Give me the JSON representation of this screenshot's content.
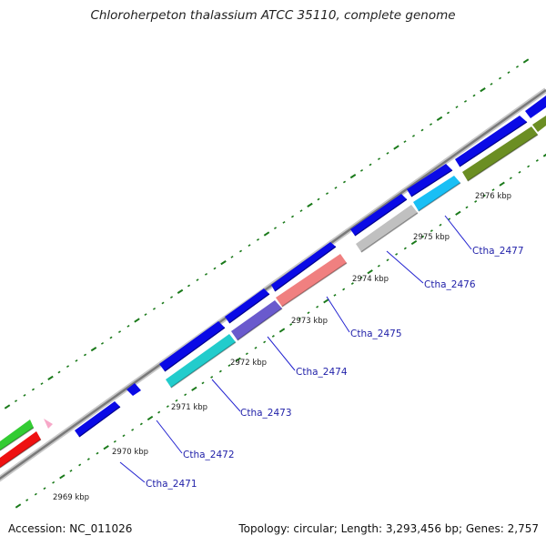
{
  "title": "Chloroherpeton thalassium ATCC 35110, complete genome",
  "footer": {
    "accession": "Accession: NC_011026",
    "summary": "Topology: circular; Length: 3,293,456 bp; Genes: 2,757"
  },
  "scale_labels": [
    "2969 kbp",
    "2970 kbp",
    "2971 kbp",
    "2972 kbp",
    "2973 kbp",
    "2974 kbp",
    "2975 kbp",
    "2976 kbp"
  ],
  "gene_labels": [
    "Ctha_2471",
    "Ctha_2472",
    "Ctha_2473",
    "Ctha_2474",
    "Ctha_2475",
    "Ctha_2476",
    "Ctha_2477"
  ],
  "colors": {
    "backbone": "#8c8c8c",
    "cds": "#0a0ae6",
    "tick": "#1a7a1a",
    "label_line": "#2020d0",
    "cyan": "#22cccc",
    "purple": "#6a5acd",
    "salmon": "#f08080",
    "gray": "#c0c0c0",
    "sky": "#19bff5",
    "olive": "#6b8e23",
    "green": "#33cc33",
    "red": "#ee1111",
    "pink": "#f7a8c8"
  }
}
